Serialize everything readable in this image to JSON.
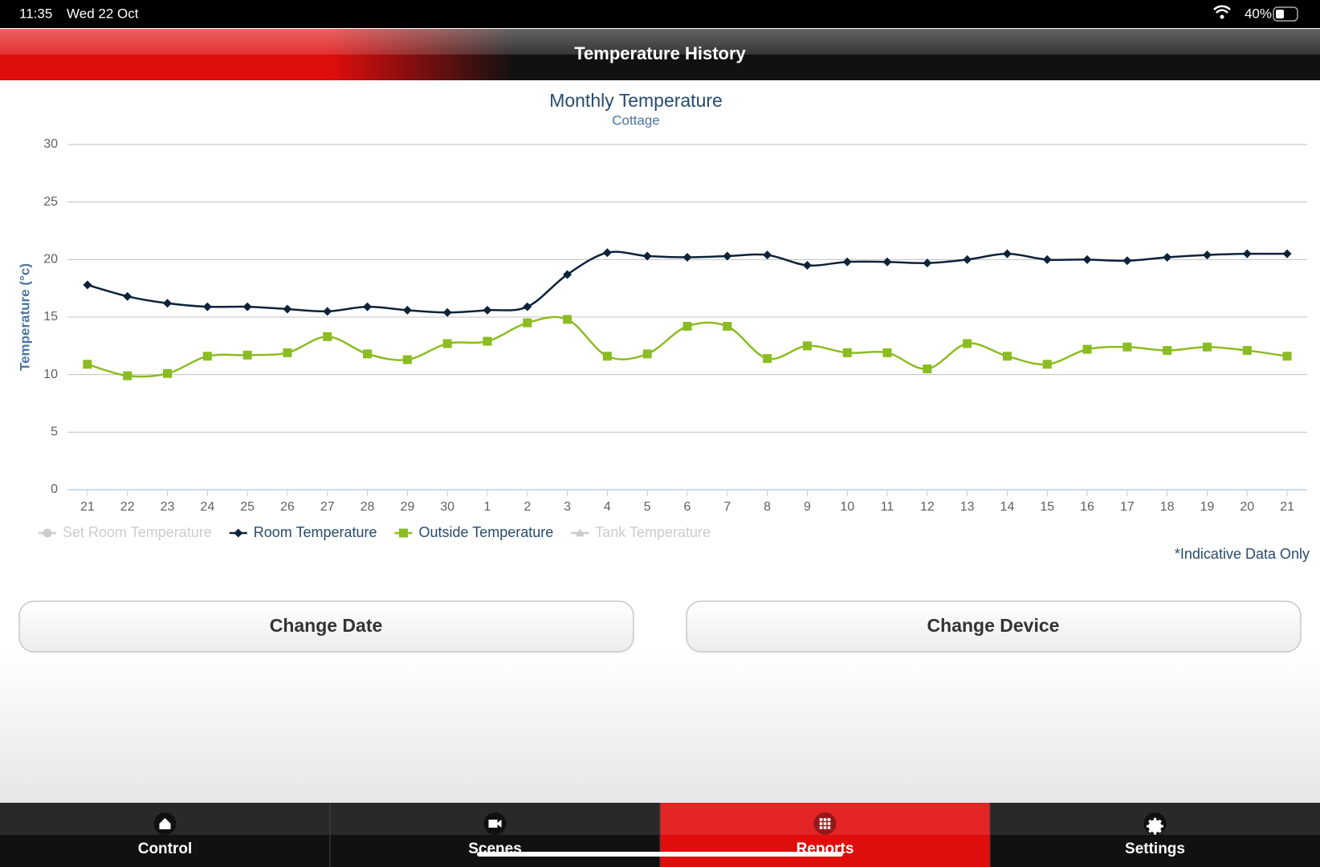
{
  "status_bar": {
    "time": "11:35",
    "date": "Wed 22 Oct",
    "battery": "40%"
  },
  "header": {
    "title": "Temperature History"
  },
  "chart_data": {
    "type": "line",
    "title": "Monthly Temperature",
    "subtitle": "Cottage",
    "y_label": "Temperature (°c)",
    "categories": [
      "21",
      "22",
      "23",
      "24",
      "25",
      "26",
      "27",
      "28",
      "29",
      "30",
      "1",
      "2",
      "3",
      "4",
      "5",
      "6",
      "7",
      "8",
      "9",
      "10",
      "11",
      "12",
      "13",
      "14",
      "15",
      "16",
      "17",
      "18",
      "19",
      "20",
      "21"
    ],
    "series": [
      {
        "name": "Set Room Temperature",
        "color": "#cccccc",
        "marker": "circle",
        "visible": false
      },
      {
        "name": "Room Temperature",
        "color": "#0d233a",
        "marker": "diamond",
        "visible": true,
        "values": [
          17.8,
          16.8,
          16.2,
          15.9,
          15.9,
          15.7,
          15.5,
          15.9,
          15.6,
          15.4,
          15.6,
          15.9,
          18.7,
          20.6,
          20.3,
          20.2,
          20.3,
          20.4,
          19.5,
          19.8,
          19.8,
          19.7,
          20.0,
          20.5,
          20.0,
          20.0,
          19.9,
          20.2,
          20.4,
          20.5,
          20.5
        ]
      },
      {
        "name": "Outside Temperature",
        "color": "#8bbc21",
        "marker": "square",
        "visible": true,
        "values": [
          10.9,
          9.9,
          10.1,
          11.6,
          11.7,
          11.9,
          13.3,
          11.8,
          11.3,
          12.7,
          12.9,
          14.5,
          14.8,
          11.6,
          11.8,
          14.2,
          14.2,
          11.4,
          12.5,
          11.9,
          11.9,
          10.5,
          12.7,
          11.6,
          10.9,
          12.2,
          12.4,
          12.1,
          12.4,
          12.1,
          11.6
        ]
      },
      {
        "name": "Tank Temperature",
        "color": "#cccccc",
        "marker": "triangle",
        "visible": false
      }
    ],
    "ylim": [
      0,
      30
    ],
    "yticks": [
      0,
      5,
      10,
      15,
      20,
      25,
      30
    ],
    "grid": true,
    "smooth": true,
    "note": "*Indicative Data Only"
  },
  "buttons": [
    "Change Date",
    "Change Device"
  ],
  "tabs": [
    {
      "label": "Control",
      "active": false
    },
    {
      "label": "Scenes",
      "active": false
    },
    {
      "label": "Reports",
      "active": true
    },
    {
      "label": "Settings",
      "active": false
    }
  ]
}
